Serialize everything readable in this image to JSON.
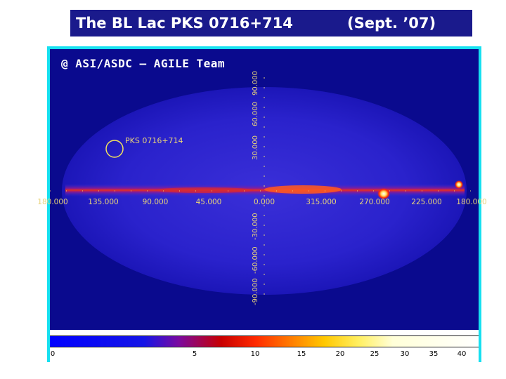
{
  "title": {
    "main": "The BL Lac PKS 0716+714",
    "date": "(Sept. ’07)"
  },
  "map": {
    "credit": "@ ASI/ASDC – AGILE Team",
    "source_label": "PKS 0716+714",
    "longitude_labels": [
      "180.000",
      "135.000",
      "90.000",
      "45.000",
      "0.000",
      "315.000",
      "270.000",
      "225.000",
      "180.000"
    ],
    "latitude_labels": [
      "30.000",
      "60.000",
      "90.000",
      "-30.000",
      "-60.000",
      "-90.000"
    ],
    "colorbar_ticks": [
      "0",
      "5",
      "10",
      "15",
      "20",
      "25",
      "30",
      "35",
      "40"
    ],
    "colors": {
      "frame": "#17e0f0",
      "background": "#0a0a8e",
      "title_bar": "#1a1a8c",
      "label": "#e8d37a",
      "marker": "#f0e060"
    }
  }
}
